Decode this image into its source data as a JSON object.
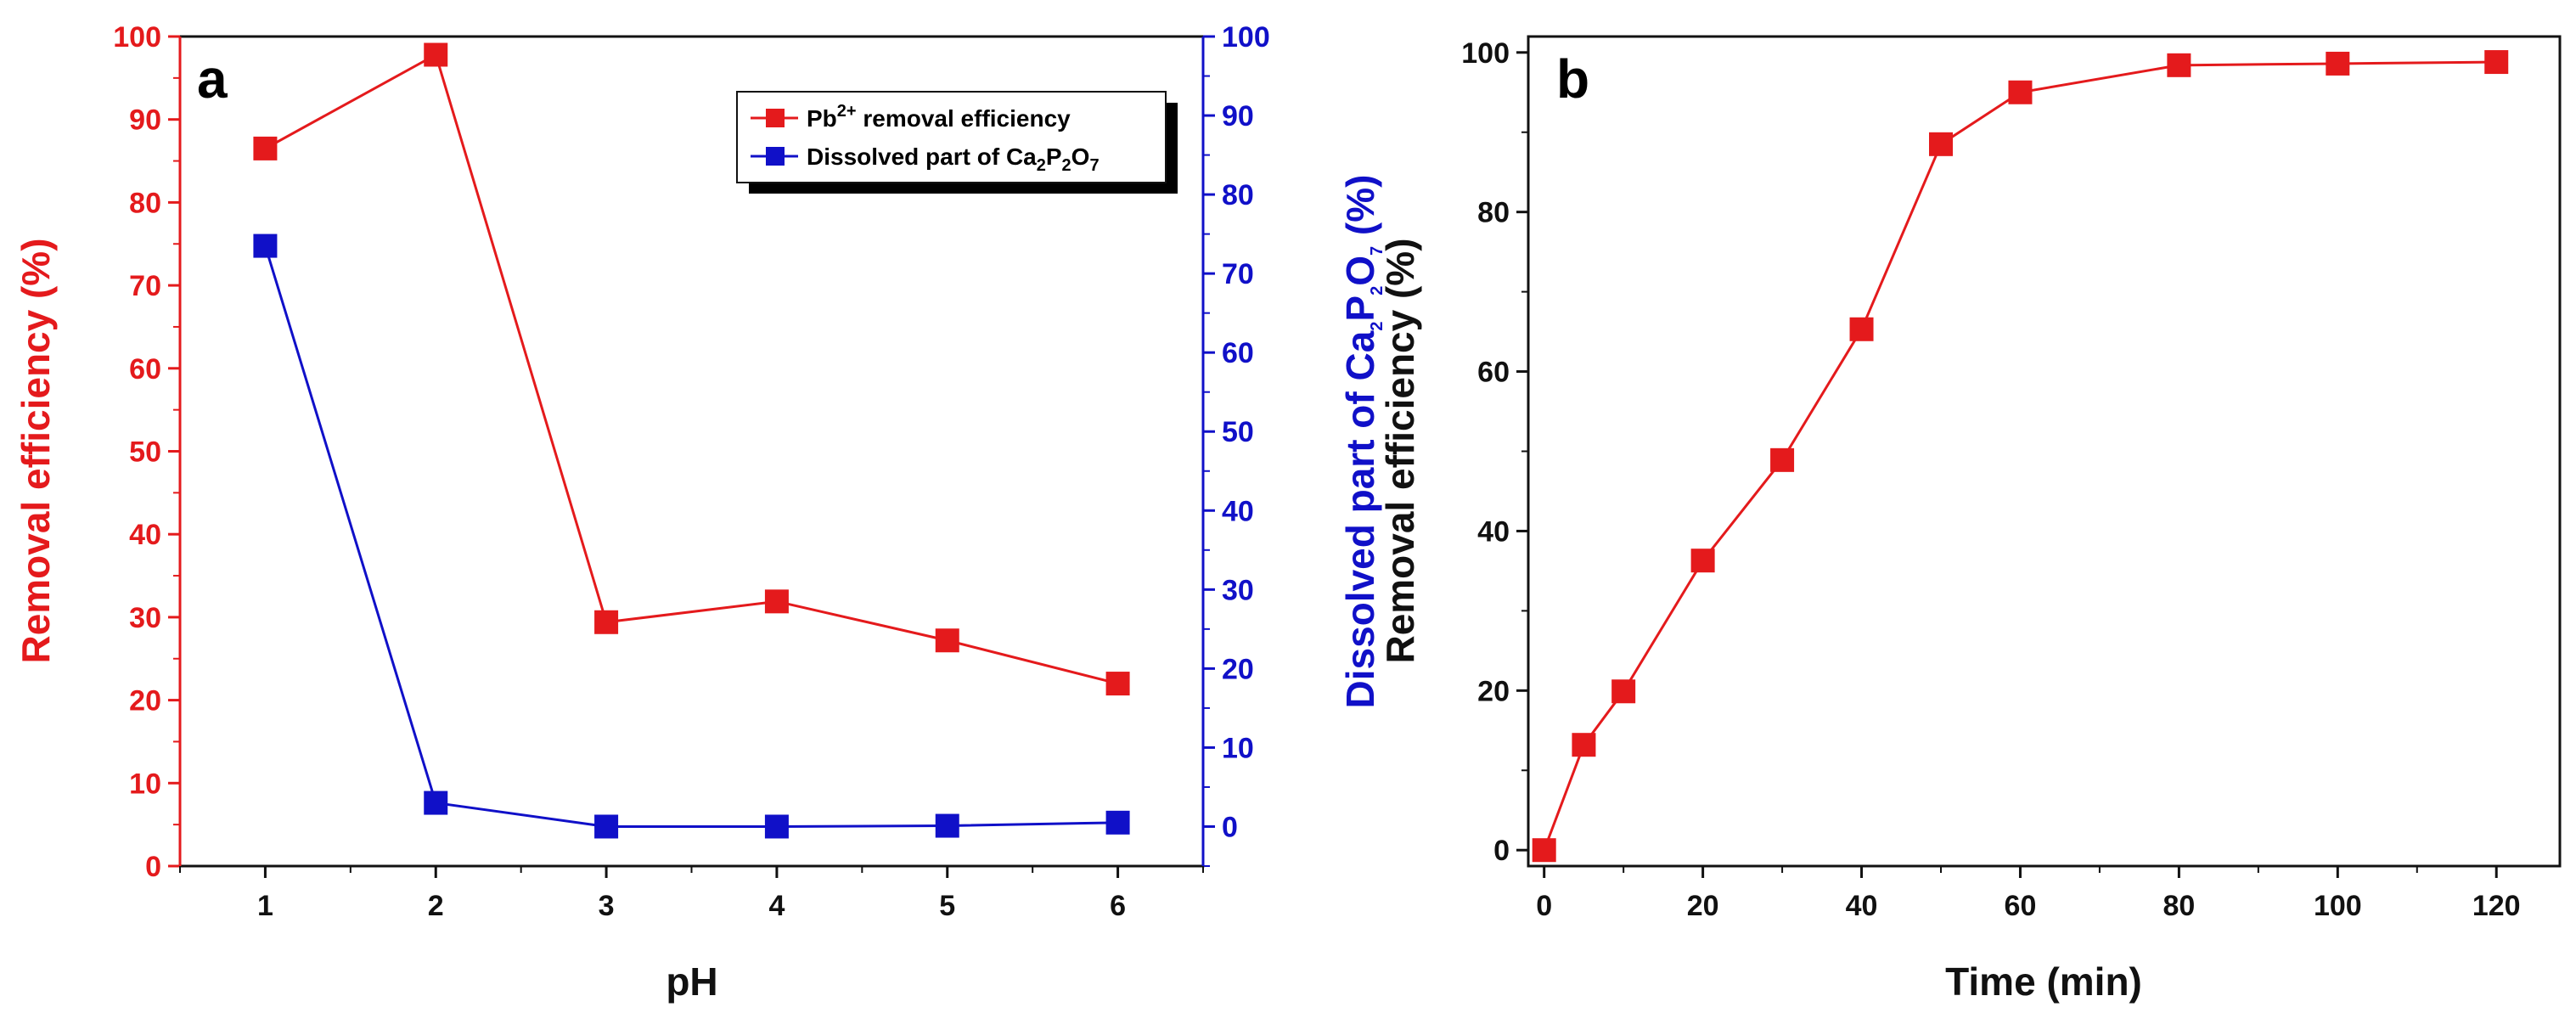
{
  "colors": {
    "red": "#e41a1c",
    "blue": "#1010c8",
    "black": "#111111"
  },
  "chart_data": [
    {
      "type": "line",
      "panel_label": "a",
      "xlabel": "pH",
      "ylabel_left": "Removal efficiency (%)",
      "ylabel_right": {
        "prefix": "Dissolved part of Ca",
        "s1": "2",
        "mid1": "P",
        "s2": "2",
        "mid2": "O",
        "s3": "7",
        "suffix": " (%)"
      },
      "x": [
        1,
        2,
        3,
        4,
        5,
        6
      ],
      "xlim": [
        0.5,
        6.5
      ],
      "ylim_left": [
        0,
        100
      ],
      "ylim_right": [
        -5,
        100
      ],
      "xticks": [
        "1",
        "2",
        "3",
        "4",
        "5",
        "6"
      ],
      "yticks_left": [
        "0",
        "10",
        "20",
        "30",
        "40",
        "50",
        "60",
        "70",
        "80",
        "90",
        "100"
      ],
      "yticks_right": [
        "0",
        "10",
        "20",
        "30",
        "40",
        "50",
        "60",
        "70",
        "80",
        "90",
        "100"
      ],
      "legend_position": "top-right",
      "series": [
        {
          "name": "Pb2+ removal efficiency",
          "legend": {
            "base": "Pb",
            "sup": "2+",
            "rest": " removal efficiency"
          },
          "axis": "left",
          "color": "#e41a1c",
          "values": [
            86.5,
            97.8,
            29.4,
            31.9,
            27.2,
            22.0
          ]
        },
        {
          "name": "Dissolved part of Ca2P2O7",
          "legend": {
            "prefix": "Dissolved part of Ca",
            "s1": "2",
            "mid1": "P",
            "s2": "2",
            "mid2": "O",
            "s3": "7"
          },
          "axis": "right",
          "color": "#1010c8",
          "values": [
            73.5,
            3.0,
            0.0,
            0.0,
            0.1,
            0.5
          ]
        }
      ]
    },
    {
      "type": "line",
      "panel_label": "b",
      "xlabel": "Time (min)",
      "ylabel": "Removal efficiency (%)",
      "xlim": [
        -2,
        128
      ],
      "ylim": [
        -2,
        102
      ],
      "xticks": [
        "0",
        "20",
        "40",
        "60",
        "80",
        "100",
        "120"
      ],
      "yticks": [
        "0",
        "20",
        "40",
        "60",
        "80",
        "100"
      ],
      "series": [
        {
          "name": "Removal efficiency",
          "color": "#e41a1c",
          "x": [
            0,
            5,
            10,
            20,
            30,
            40,
            50,
            60,
            80,
            100,
            120
          ],
          "values": [
            0.0,
            13.2,
            19.9,
            36.3,
            48.9,
            65.3,
            88.5,
            95.0,
            98.4,
            98.6,
            98.8
          ]
        }
      ]
    }
  ]
}
